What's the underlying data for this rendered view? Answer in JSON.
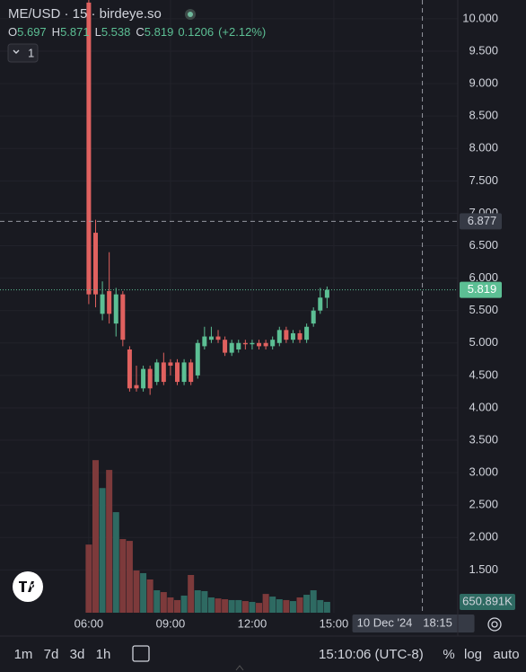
{
  "chart_data": {
    "type": "candlestick",
    "title": "ME/USD · 15 · birdeye.so",
    "ohlc_labels": [
      "O",
      "H",
      "L",
      "C"
    ],
    "change": 0.1206,
    "change_pct": {
      "value": 2.12,
      "label": "(+2.12%)"
    },
    "legend_toggle": "1",
    "x": [
      6,
      6.25,
      6.5,
      6.75,
      7,
      7.25,
      7.5,
      7.75,
      8,
      8.25,
      8.5,
      8.75,
      9,
      9.25,
      9.5,
      9.75,
      10,
      10.25,
      10.5,
      10.75,
      11,
      11.25,
      11.5,
      11.75,
      12,
      12.25,
      12.5,
      12.75,
      13,
      13.25,
      13.5,
      13.75,
      14,
      14.25,
      14.5,
      14.75
    ],
    "open": [
      10.25,
      6.7,
      5.45,
      5.8,
      5.3,
      5.75,
      4.9,
      4.35,
      4.3,
      4.6,
      4.4,
      4.7,
      4.7,
      4.7,
      4.4,
      4.7,
      4.5,
      4.95,
      5.05,
      5.1,
      5.05,
      4.85,
      4.9,
      5.0,
      4.98,
      5.0,
      5.0,
      4.95,
      5.0,
      5.2,
      5.05,
      5.15,
      5.05,
      5.3,
      5.5,
      5.697
    ],
    "high": [
      10.29,
      6.9,
      5.95,
      6.4,
      5.85,
      5.8,
      4.95,
      4.65,
      4.65,
      4.65,
      4.75,
      4.85,
      4.75,
      4.75,
      4.75,
      4.75,
      5.05,
      5.25,
      5.25,
      5.2,
      5.1,
      5.05,
      5.05,
      5.05,
      5.05,
      5.05,
      5.05,
      5.1,
      5.25,
      5.25,
      5.2,
      5.2,
      5.3,
      5.55,
      5.85,
      5.871
    ],
    "low": [
      5.6,
      5.55,
      5.35,
      5.3,
      5.1,
      4.95,
      4.25,
      4.25,
      4.25,
      4.2,
      4.35,
      4.35,
      4.5,
      4.35,
      4.35,
      4.35,
      4.45,
      4.9,
      5.0,
      5.0,
      4.8,
      4.8,
      4.85,
      4.9,
      4.9,
      4.9,
      4.9,
      4.9,
      4.95,
      5.0,
      5.0,
      5.0,
      5.0,
      5.25,
      5.45,
      5.538
    ],
    "close": [
      5.75,
      5.75,
      5.75,
      5.45,
      5.75,
      5.05,
      4.3,
      4.3,
      4.6,
      4.3,
      4.7,
      4.4,
      4.65,
      4.4,
      4.7,
      4.4,
      5.0,
      5.1,
      5.1,
      5.05,
      4.85,
      5.0,
      5.0,
      4.98,
      5.0,
      4.95,
      4.95,
      5.05,
      5.2,
      5.05,
      5.15,
      5.05,
      5.25,
      5.5,
      5.7,
      5.819
    ],
    "volume": [
      4100000,
      9180000,
      7500000,
      8590000,
      6050000,
      4430000,
      4320000,
      2540000,
      2380000,
      2000000,
      1350000,
      1240000,
      920000,
      760000,
      1030000,
      2270000,
      1350000,
      1300000,
      920000,
      860000,
      810000,
      760000,
      760000,
      700000,
      650000,
      590000,
      1130000,
      970000,
      810000,
      760000,
      700000,
      920000,
      1080000,
      1350000,
      760000,
      650891
    ],
    "volume_label": {
      "value": 650891,
      "label": "650.891K"
    },
    "volume_ylim": [
      0,
      12000000
    ],
    "up_color": "#5cbf94",
    "down_color": "#e0615f",
    "up_volume_color": "#2e6a62",
    "down_volume_color": "#7d3a3b",
    "xlim": [
      2.74,
      19.55
    ],
    "xticks": [
      {
        "value": 6,
        "label": "06:00"
      },
      {
        "value": 9,
        "label": "09:00"
      },
      {
        "value": 12,
        "label": "12:00"
      },
      {
        "value": 15,
        "label": "15:00"
      }
    ],
    "ylim": [
      0.84,
      10.29
    ],
    "yticks": [
      {
        "value": 1.5,
        "label": "1.500"
      },
      {
        "value": 2,
        "label": "2.000"
      },
      {
        "value": 2.5,
        "label": "2.500"
      },
      {
        "value": 3,
        "label": "3.000"
      },
      {
        "value": 3.5,
        "label": "3.500"
      },
      {
        "value": 4,
        "label": "4.000"
      },
      {
        "value": 4.5,
        "label": "4.500"
      },
      {
        "value": 5,
        "label": "5.000"
      },
      {
        "value": 5.5,
        "label": "5.500"
      },
      {
        "value": 6,
        "label": "6.000"
      },
      {
        "value": 6.5,
        "label": "6.500"
      },
      {
        "value": 7,
        "label": "7.000"
      },
      {
        "value": 7.5,
        "label": "7.500"
      },
      {
        "value": 8,
        "label": "8.000"
      },
      {
        "value": 8.5,
        "label": "8.500"
      },
      {
        "value": 9,
        "label": "9.000"
      },
      {
        "value": 9.5,
        "label": "9.500"
      },
      {
        "value": 10,
        "label": "10.000"
      }
    ],
    "grid": true,
    "crosshair": {
      "price": 6.877,
      "date": "10 Dec '24",
      "time": {
        "value": 18.25,
        "label": "18:15"
      }
    }
  },
  "toolbar": {
    "ranges": [
      "1m",
      "7d",
      "3d",
      "1h"
    ],
    "clock": "15:10:06 (UTC-8)",
    "options": [
      "%",
      "log",
      "auto"
    ]
  }
}
